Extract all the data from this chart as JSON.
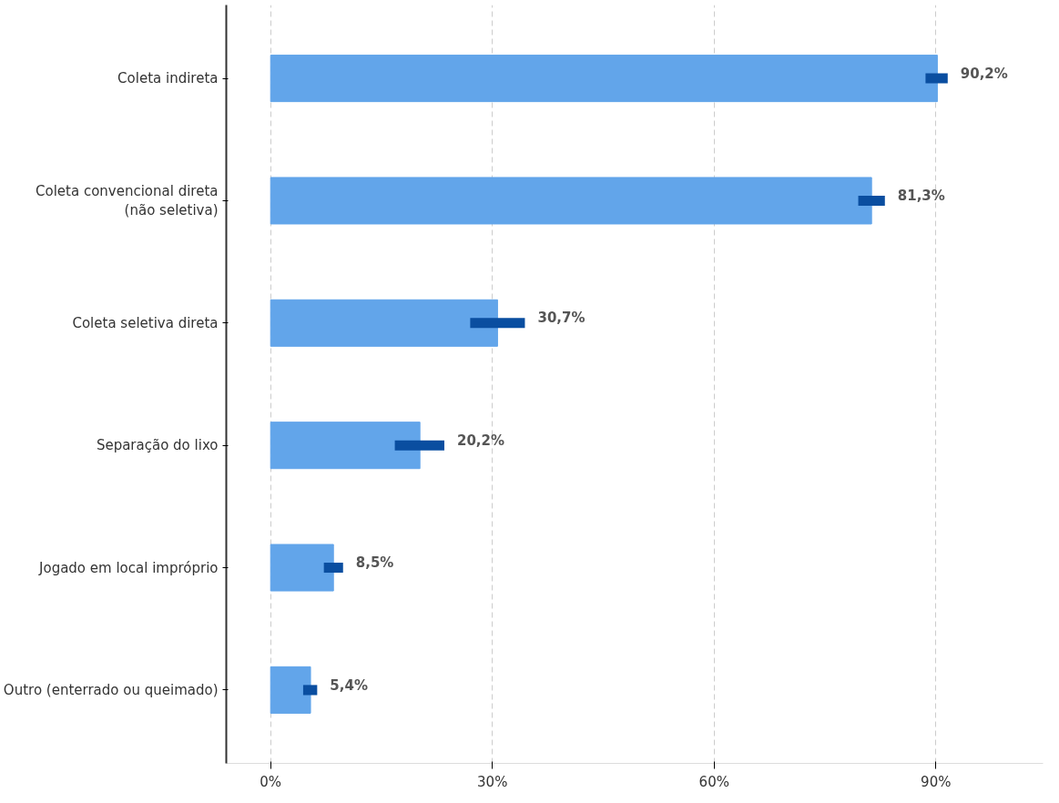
{
  "chart_data": {
    "type": "bar",
    "orientation": "horizontal",
    "categories": [
      "Coleta indireta",
      "Coleta convencional direta\n(não seletiva)",
      "Coleta seletiva direta",
      "Separação do lixo",
      "Jogado em local impróprio",
      "Outro (enterrado ou queimado)"
    ],
    "values": [
      90.2,
      81.3,
      30.7,
      20.2,
      8.5,
      5.4
    ],
    "errors": [
      [
        88.6,
        91.6
      ],
      [
        79.5,
        83.1
      ],
      [
        27.0,
        34.4
      ],
      [
        16.8,
        23.5
      ],
      [
        7.2,
        9.8
      ],
      [
        4.4,
        6.3
      ]
    ],
    "value_labels": [
      "90,2%",
      "81,3%",
      "30,7%",
      "20,2%",
      "8,5%",
      "5,4%"
    ],
    "color": "#62a5ea",
    "xlim": [
      -6,
      104.5
    ],
    "xticks": [
      {
        "value": 0,
        "label": "0%"
      },
      {
        "value": 30,
        "label": "30%"
      },
      {
        "value": 60,
        "label": "60%"
      },
      {
        "value": 90,
        "label": "90%"
      }
    ],
    "grid": "x"
  }
}
